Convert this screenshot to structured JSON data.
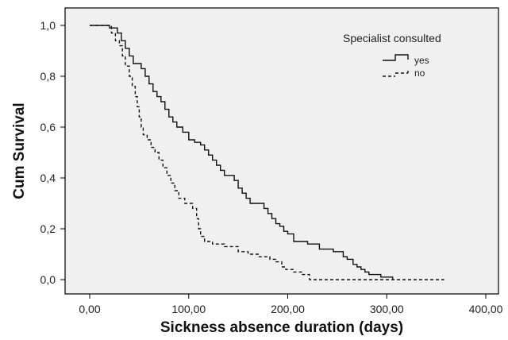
{
  "chart_data": {
    "type": "line",
    "style": "kaplan-meier step survival curve",
    "title": "",
    "xlabel": "Sickness absence duration (days)",
    "ylabel": "Cum Survival",
    "xlim": [
      0,
      400
    ],
    "ylim": [
      0,
      1
    ],
    "x_ticks": [
      0,
      100,
      200,
      300,
      400
    ],
    "x_tick_labels": [
      "0,00",
      "100,00",
      "200,00",
      "300,00",
      "400,00"
    ],
    "y_ticks": [
      0,
      0.2,
      0.4,
      0.6,
      0.8,
      1.0
    ],
    "y_tick_labels": [
      "0,0",
      "0,2",
      "0,4",
      "0,6",
      "0,8",
      "1,0"
    ],
    "grid": false,
    "plot_background": "#f0f0f0",
    "legend": {
      "title": "Specialist consulted",
      "position": "top-right",
      "entries": [
        "yes",
        "no"
      ]
    },
    "series": [
      {
        "name": "yes",
        "line_style": "solid",
        "color": "#111111",
        "points": [
          [
            0,
            1.0
          ],
          [
            20,
            0.99
          ],
          [
            28,
            0.97
          ],
          [
            32,
            0.94
          ],
          [
            36,
            0.91
          ],
          [
            40,
            0.88
          ],
          [
            44,
            0.85
          ],
          [
            52,
            0.83
          ],
          [
            56,
            0.8
          ],
          [
            60,
            0.77
          ],
          [
            64,
            0.74
          ],
          [
            68,
            0.72
          ],
          [
            72,
            0.7
          ],
          [
            76,
            0.67
          ],
          [
            80,
            0.64
          ],
          [
            84,
            0.62
          ],
          [
            88,
            0.6
          ],
          [
            94,
            0.58
          ],
          [
            100,
            0.55
          ],
          [
            106,
            0.54
          ],
          [
            112,
            0.53
          ],
          [
            116,
            0.51
          ],
          [
            120,
            0.49
          ],
          [
            124,
            0.47
          ],
          [
            128,
            0.45
          ],
          [
            132,
            0.43
          ],
          [
            136,
            0.41
          ],
          [
            146,
            0.39
          ],
          [
            150,
            0.36
          ],
          [
            154,
            0.34
          ],
          [
            158,
            0.32
          ],
          [
            162,
            0.3
          ],
          [
            176,
            0.28
          ],
          [
            180,
            0.26
          ],
          [
            184,
            0.24
          ],
          [
            188,
            0.22
          ],
          [
            192,
            0.21
          ],
          [
            196,
            0.19
          ],
          [
            200,
            0.18
          ],
          [
            206,
            0.15
          ],
          [
            220,
            0.14
          ],
          [
            232,
            0.12
          ],
          [
            246,
            0.11
          ],
          [
            256,
            0.09
          ],
          [
            260,
            0.08
          ],
          [
            266,
            0.06
          ],
          [
            270,
            0.05
          ],
          [
            274,
            0.04
          ],
          [
            278,
            0.03
          ],
          [
            282,
            0.02
          ],
          [
            294,
            0.01
          ],
          [
            306,
            0.0
          ]
        ]
      },
      {
        "name": "no",
        "line_style": "dashed",
        "color": "#111111",
        "points": [
          [
            0,
            1.0
          ],
          [
            22,
            0.97
          ],
          [
            26,
            0.94
          ],
          [
            30,
            0.92
          ],
          [
            33,
            0.88
          ],
          [
            36,
            0.84
          ],
          [
            40,
            0.8
          ],
          [
            43,
            0.76
          ],
          [
            46,
            0.72
          ],
          [
            48,
            0.68
          ],
          [
            50,
            0.64
          ],
          [
            52,
            0.6
          ],
          [
            54,
            0.57
          ],
          [
            58,
            0.55
          ],
          [
            62,
            0.52
          ],
          [
            66,
            0.5
          ],
          [
            70,
            0.47
          ],
          [
            74,
            0.44
          ],
          [
            78,
            0.41
          ],
          [
            82,
            0.38
          ],
          [
            86,
            0.35
          ],
          [
            90,
            0.32
          ],
          [
            96,
            0.3
          ],
          [
            104,
            0.28
          ],
          [
            108,
            0.24
          ],
          [
            110,
            0.2
          ],
          [
            112,
            0.17
          ],
          [
            116,
            0.15
          ],
          [
            124,
            0.14
          ],
          [
            136,
            0.13
          ],
          [
            150,
            0.11
          ],
          [
            160,
            0.1
          ],
          [
            170,
            0.09
          ],
          [
            182,
            0.08
          ],
          [
            188,
            0.07
          ],
          [
            194,
            0.05
          ],
          [
            198,
            0.04
          ],
          [
            206,
            0.03
          ],
          [
            214,
            0.02
          ],
          [
            222,
            0.0
          ],
          [
            358,
            0.0
          ]
        ]
      }
    ]
  }
}
